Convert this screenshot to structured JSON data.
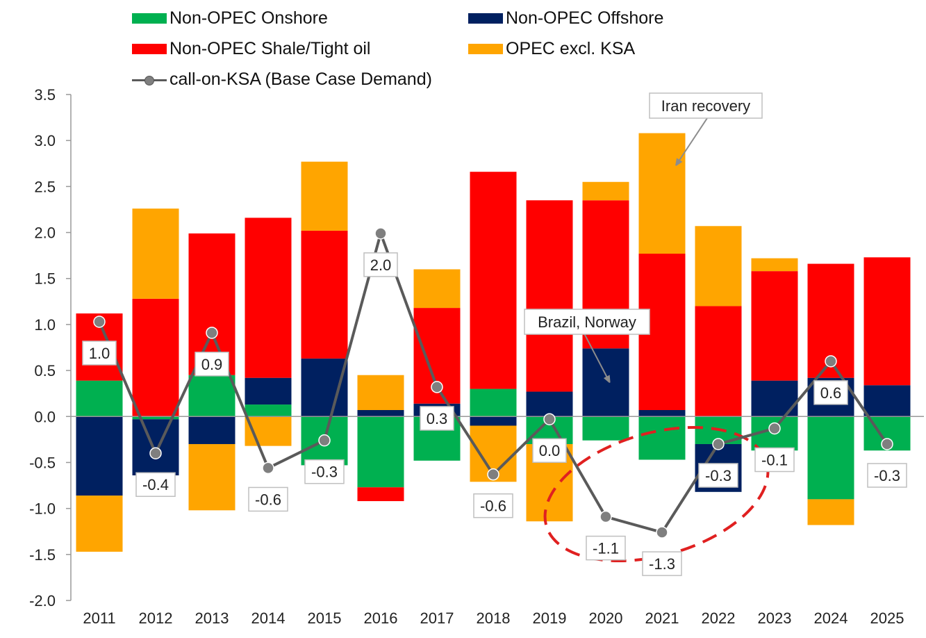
{
  "colors": {
    "onshore": "#00b050",
    "offshore": "#002060",
    "shale": "#ff0000",
    "opec": "#ffa500",
    "line": "#5a5a5a",
    "marker": "#7f7f7f",
    "ellipse": "#e02020"
  },
  "chart_data": {
    "type": "bar",
    "stacked": true,
    "categories": [
      "2011",
      "2012",
      "2013",
      "2014",
      "2015",
      "2016",
      "2017",
      "2018",
      "2019",
      "2020",
      "2021",
      "2022",
      "2023",
      "2024",
      "2025"
    ],
    "ylim": [
      -2.0,
      3.5
    ],
    "yticks": [
      "-2.0",
      "-1.5",
      "-1.0",
      "-0.5",
      "0.0",
      "0.5",
      "1.0",
      "1.5",
      "2.0",
      "2.5",
      "3.0",
      "3.5"
    ],
    "series": [
      {
        "name": "Non-OPEC Onshore",
        "key": "onshore",
        "values": [
          0.39,
          -0.03,
          0.45,
          0.13,
          -0.53,
          -0.77,
          -0.48,
          0.3,
          -0.3,
          -0.26,
          -0.47,
          -0.3,
          -0.37,
          -0.9,
          -0.37
        ]
      },
      {
        "name": "Non-OPEC Offshore",
        "key": "offshore",
        "values": [
          -0.86,
          -0.61,
          -0.3,
          0.29,
          0.63,
          0.07,
          0.14,
          -0.1,
          0.27,
          0.74,
          0.07,
          -0.52,
          0.39,
          0.42,
          0.34
        ]
      },
      {
        "name": "Non-OPEC Shale/Tight oil",
        "key": "shale",
        "values": [
          0.73,
          1.28,
          1.54,
          1.74,
          1.39,
          -0.15,
          1.04,
          2.36,
          2.08,
          1.61,
          1.7,
          1.2,
          1.19,
          1.24,
          1.39
        ]
      },
      {
        "name": "OPEC excl. KSA",
        "key": "opec",
        "values": [
          -0.61,
          0.98,
          -0.72,
          -0.32,
          0.75,
          0.38,
          0.42,
          -0.61,
          -0.84,
          0.2,
          1.31,
          0.87,
          0.14,
          -0.28,
          0.0
        ]
      }
    ],
    "line": {
      "name": "call-on-KSA (Base Case Demand)",
      "values": [
        1.03,
        -0.4,
        0.91,
        -0.56,
        -0.26,
        1.99,
        0.32,
        -0.63,
        -0.03,
        -1.09,
        -1.26,
        -0.3,
        -0.13,
        0.6,
        -0.3
      ],
      "labels": [
        "1.0",
        "-0.4",
        "0.9",
        "-0.6",
        "-0.3",
        "2.0",
        "0.3",
        "-0.6",
        "0.0",
        "-1.1",
        "-1.3",
        "-0.3",
        "-0.1",
        "0.6",
        "-0.3"
      ]
    },
    "annotations": [
      {
        "text": "Iran recovery"
      },
      {
        "text": "Brazil, Norway"
      }
    ],
    "legend_position": "top"
  },
  "legend": [
    {
      "label": "Non-OPEC Onshore",
      "key": "onshore"
    },
    {
      "label": "Non-OPEC Offshore",
      "key": "offshore"
    },
    {
      "label": "Non-OPEC Shale/Tight oil",
      "key": "shale"
    },
    {
      "label": "OPEC excl. KSA",
      "key": "opec"
    },
    {
      "label": "call-on-KSA (Base Case Demand)",
      "key": "line"
    }
  ]
}
